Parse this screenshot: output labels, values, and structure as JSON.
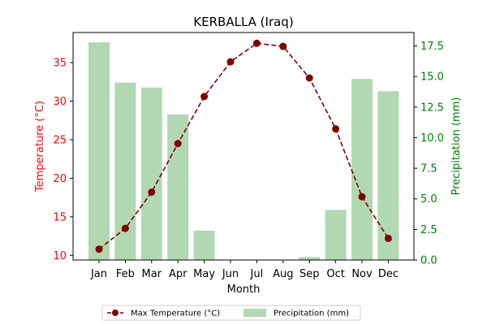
{
  "chart_data": {
    "type": "bar+line",
    "title": "KERBALLA (Iraq)",
    "xlabel": "Month",
    "ylabel_left": "Temperature (°C)",
    "ylabel_right": "Precipitation (mm)",
    "categories": [
      "Jan",
      "Feb",
      "Mar",
      "Apr",
      "May",
      "Jun",
      "Jul",
      "Aug",
      "Sep",
      "Oct",
      "Nov",
      "Dec"
    ],
    "series": [
      {
        "name": "Max Temperature (°C)",
        "type": "line",
        "axis": "left",
        "color": "#800000",
        "values": [
          10.8,
          13.5,
          18.2,
          24.5,
          30.6,
          35.1,
          37.5,
          37.1,
          33.0,
          26.4,
          17.6,
          12.2
        ]
      },
      {
        "name": "Precipitation (mm)",
        "type": "bar",
        "axis": "right",
        "color": "#b2d8b2",
        "values": [
          17.8,
          14.5,
          14.1,
          11.9,
          2.4,
          0.0,
          0.0,
          0.0,
          0.25,
          4.1,
          14.8,
          13.8
        ]
      }
    ],
    "ylim_left": [
      9.4,
      38.9
    ],
    "yticks_left": [
      10,
      15,
      20,
      25,
      30,
      35
    ],
    "ylim_right": [
      0,
      18.6
    ],
    "yticks_right": [
      0.0,
      2.5,
      5.0,
      7.5,
      10.0,
      12.5,
      15.0,
      17.5
    ],
    "left_axis_color": "#ff0000",
    "right_axis_color": "#008000",
    "grid": false,
    "legend_position": "bottom-center"
  }
}
